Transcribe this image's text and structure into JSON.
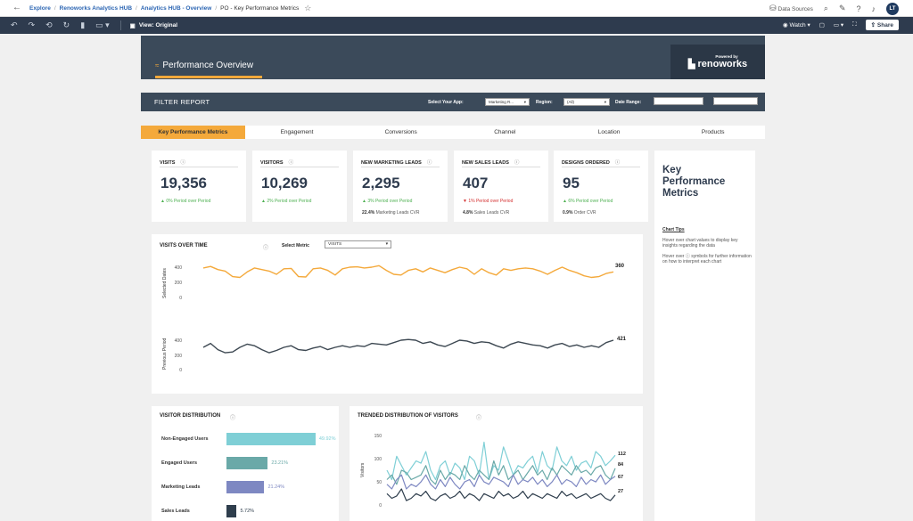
{
  "topbar": {
    "crumbs": [
      "Explore",
      "Renoworks Analytics HUB",
      "Analytics HUB - Overview"
    ],
    "current": "PO - Key Performance Metrics",
    "data_sources": "Data Sources",
    "avatar": "LT"
  },
  "toolbar": {
    "view_label": "View: Original",
    "watch_label": "Watch",
    "share_label": "Share"
  },
  "header": {
    "title": "Performance Overview",
    "powered_by": "Powered by",
    "brand": "renoworks"
  },
  "filter": {
    "title": "FILTER REPORT",
    "app_label": "Select Your App:",
    "app_value": "Marketing R...",
    "region_label": "Region:",
    "region_value": "(All)",
    "date_label": "Date Range:"
  },
  "tabs": [
    "Key Performance Metrics",
    "Engagement",
    "Conversions",
    "Channel",
    "Location",
    "Products"
  ],
  "kpis": [
    {
      "title": "VISITS",
      "value": "19,356",
      "delta": "▲ 0% Period over Period",
      "dir": "up",
      "sub_bold": "",
      "sub": ""
    },
    {
      "title": "VISITORS",
      "value": "10,269",
      "delta": "▲ 2% Period over Period",
      "dir": "up",
      "sub_bold": "",
      "sub": ""
    },
    {
      "title": "NEW MARKETING LEADS",
      "value": "2,295",
      "delta": "▲ 3% Period over Period",
      "dir": "up",
      "sub_bold": "22.4%",
      "sub": "Marketing Leads CVR"
    },
    {
      "title": "NEW SALES LEADS",
      "value": "407",
      "delta": "▼ 1% Period over Period",
      "dir": "down",
      "sub_bold": "4.8%",
      "sub": "Sales Leads CVR"
    },
    {
      "title": "DESIGNS ORDERED",
      "value": "95",
      "delta": "▲ 6% Period over Period",
      "dir": "up",
      "sub_bold": "0.9%",
      "sub": "Order CVR"
    }
  ],
  "sidebar": {
    "title": "Key Performance Metrics",
    "tips_heading": "Chart Tips",
    "tip1": "Hover over chart values to display key insights regarding the data",
    "tip2": "Hover over ⓘ symbols for further information on how to interpret each chart"
  },
  "visits_over_time": {
    "title": "VISITS OVER TIME",
    "metric_label": "Select Metric",
    "metric_value": "VISITS",
    "top_ylabel": "Selected Dates",
    "bottom_ylabel": "Previous Period",
    "ticks": [
      "400",
      "200",
      "0"
    ],
    "top_end_label": "360",
    "bottom_end_label": "421",
    "colors": {
      "selected": "#f4a93b",
      "previous": "#3d4852"
    }
  },
  "visitor_distribution": {
    "title": "VISITOR DISTRIBUTION",
    "rows": [
      {
        "label": "Non-Engaged Users",
        "value": 49.92,
        "display": "49.92%",
        "color": "#7fcfd6"
      },
      {
        "label": "Engaged Users",
        "value": 23.21,
        "display": "23.21%",
        "color": "#6aa9a8"
      },
      {
        "label": "Marketing Leads",
        "value": 21.24,
        "display": "21.24%",
        "color": "#7e88c2"
      },
      {
        "label": "Sales Leads",
        "value": 5.72,
        "display": "5.72%",
        "color": "#2f3e4d"
      }
    ]
  },
  "trended": {
    "title": "TRENDED DISTRIBUTION OF VISITORS",
    "ylabel": "Visitors",
    "ticks": [
      "150",
      "100",
      "50",
      "0"
    ],
    "end_labels": [
      "112",
      "84",
      "67",
      "27"
    ],
    "colors": [
      "#7fcfd6",
      "#6aa9a8",
      "#7e88c2",
      "#2f3e4d"
    ]
  },
  "chart_data": [
    {
      "type": "line",
      "title": "VISITS OVER TIME",
      "ylabel": "Selected Dates",
      "ylim": [
        0,
        500
      ],
      "series": [
        {
          "values": [
            410,
            430,
            390,
            370,
            300,
            290,
            360,
            410,
            390,
            370,
            330,
            400,
            405,
            300,
            295,
            400,
            410,
            380,
            320,
            400,
            420,
            425,
            410,
            420,
            440,
            380,
            330,
            320,
            380,
            400,
            360,
            410,
            380,
            350,
            390,
            420,
            400,
            330,
            400,
            350,
            320,
            400,
            380,
            400,
            410,
            400,
            370,
            330,
            380,
            420,
            380,
            350,
            310,
            290,
            300,
            340,
            360
          ]
        }
      ]
    },
    {
      "type": "line",
      "title": "VISITS OVER TIME",
      "ylabel": "Previous Period",
      "ylim": [
        0,
        500
      ],
      "series": [
        {
          "values": [
            330,
            380,
            300,
            260,
            270,
            330,
            370,
            350,
            300,
            260,
            290,
            330,
            350,
            300,
            290,
            320,
            340,
            300,
            330,
            350,
            330,
            350,
            340,
            380,
            370,
            360,
            390,
            420,
            430,
            420,
            380,
            400,
            360,
            340,
            380,
            420,
            410,
            380,
            400,
            390,
            350,
            320,
            370,
            400,
            380,
            360,
            350,
            320,
            360,
            380,
            340,
            360,
            330,
            350,
            330,
            390,
            421
          ]
        }
      ]
    },
    {
      "type": "bar",
      "title": "VISITOR DISTRIBUTION",
      "categories": [
        "Non-Engaged Users",
        "Engaged Users",
        "Marketing Leads",
        "Sales Leads"
      ],
      "values": [
        49.92,
        23.21,
        21.24,
        5.72
      ]
    },
    {
      "type": "line",
      "title": "TRENDED DISTRIBUTION OF VISITORS",
      "ylabel": "Visitors",
      "ylim": [
        0,
        160
      ],
      "series": [
        {
          "values": [
            80,
            60,
            110,
            90,
            70,
            85,
            100,
            95,
            120,
            80,
            60,
            90,
            100,
            70,
            95,
            85,
            60,
            110,
            100,
            70,
            140,
            60,
            90,
            80,
            130,
            100,
            70,
            90,
            85,
            100,
            110,
            75,
            120,
            90,
            80,
            130,
            100,
            90,
            110,
            80,
            95,
            100,
            85,
            120,
            110,
            90,
            100,
            112
          ]
        },
        {
          "values": [
            60,
            70,
            50,
            80,
            75,
            60,
            65,
            70,
            90,
            60,
            50,
            80,
            60,
            75,
            70,
            60,
            90,
            70,
            60,
            80,
            70,
            60,
            100,
            70,
            90,
            60,
            70,
            80,
            60,
            75,
            90,
            70,
            80,
            60,
            85,
            70,
            90,
            80,
            70,
            90,
            75,
            80,
            70,
            85,
            90,
            70,
            60,
            84
          ]
        },
        {
          "values": [
            50,
            40,
            60,
            70,
            40,
            50,
            45,
            55,
            70,
            50,
            40,
            60,
            45,
            65,
            50,
            40,
            55,
            60,
            45,
            70,
            55,
            50,
            65,
            60,
            55,
            45,
            70,
            50,
            60,
            55,
            65,
            50,
            60,
            45,
            55,
            70,
            50,
            60,
            55,
            45,
            65,
            50,
            60,
            55,
            70,
            50,
            60,
            67
          ]
        },
        {
          "values": [
            30,
            20,
            25,
            40,
            15,
            20,
            30,
            25,
            35,
            20,
            15,
            25,
            30,
            20,
            25,
            35,
            20,
            30,
            25,
            15,
            30,
            25,
            20,
            35,
            25,
            30,
            20,
            25,
            35,
            20,
            30,
            25,
            20,
            30,
            25,
            20,
            35,
            25,
            30,
            20,
            25,
            30,
            20,
            25,
            30,
            20,
            15,
            27
          ]
        }
      ]
    }
  ]
}
